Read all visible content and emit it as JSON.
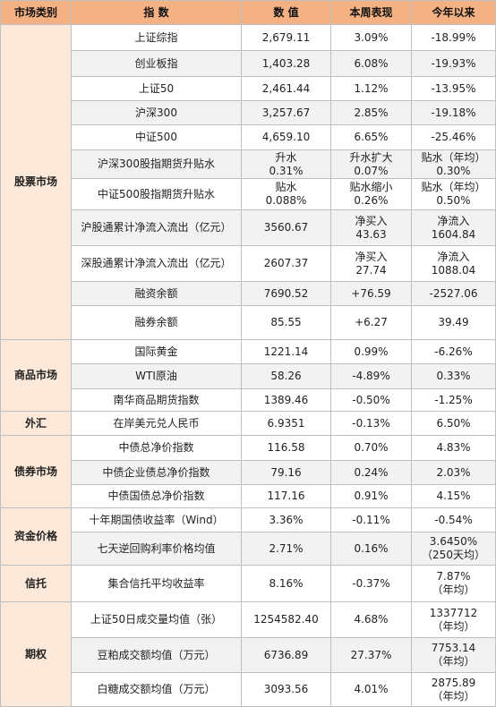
{
  "header": [
    "市场类别",
    "指 数",
    "数 值",
    "本周表现",
    "今年以来"
  ],
  "groups": [
    {
      "category": "股票市场",
      "rows": [
        [
          "上证综指",
          "2,679.11",
          "3.09%",
          "-18.99%"
        ],
        [
          "创业板指",
          "1,403.28",
          "6.08%",
          "-19.93%"
        ],
        [
          "上证50",
          "2,461.44",
          "1.12%",
          "-13.95%"
        ],
        [
          "沪深300",
          "3,257.67",
          "2.85%",
          "-19.18%"
        ],
        [
          "中证500",
          "4,659.10",
          "6.65%",
          "-25.46%"
        ],
        [
          "沪深300股指期货升贴水",
          "升水\n0.31%",
          "升水扩大\n0.07%",
          "贴水（年均）\n0.30%"
        ],
        [
          "中证500股指期货升贴水",
          "贴水\n0.088%",
          "贴水缩小\n0.26%",
          "贴水（年均）\n0.50%"
        ],
        [
          "沪股通累计净流入流出（亿元）",
          "3560.67",
          "净买入\n43.63",
          "净流入\n1604.84"
        ],
        [
          "深股通累计净流入流出（亿元）",
          "2607.37",
          "净买入\n27.74",
          "净流入\n1088.04"
        ],
        [
          "融资余额",
          "7690.52",
          "+76.59",
          "-2527.06"
        ],
        [
          "融券余额",
          "85.55",
          "+6.27",
          "39.49"
        ]
      ]
    },
    {
      "category": "商品市场",
      "rows": [
        [
          "国际黄金",
          "1221.14",
          "0.99%",
          "-6.26%"
        ],
        [
          "WTI原油",
          "58.26",
          "-4.89%",
          "0.33%"
        ],
        [
          "南华商品期货指数",
          "1389.46",
          "-0.50%",
          "-1.25%"
        ]
      ]
    },
    {
      "category": "外汇",
      "rows": [
        [
          "在岸美元兑人民币",
          "6.9351",
          "-0.13%",
          "6.50%"
        ]
      ]
    },
    {
      "category": "债券市场",
      "rows": [
        [
          "中债总净价指数",
          "116.58",
          "0.70%",
          "4.83%"
        ],
        [
          "中债企业债总净价指数",
          "79.16",
          "0.24%",
          "2.03%"
        ],
        [
          "中债国债总净价指数",
          "117.16",
          "0.91%",
          "4.15%"
        ]
      ]
    },
    {
      "category": "资金价格",
      "rows": [
        [
          "十年期国债收益率（Wind）",
          "3.36%",
          "-0.11%",
          "-0.54%"
        ],
        [
          "七天逆回购利率价格均值",
          "2.71%",
          "0.16%",
          "3.6450%\n（250天均）"
        ]
      ]
    },
    {
      "category": "信托",
      "rows": [
        [
          "集合信托平均收益率",
          "8.16%",
          "-0.37%",
          "7.87%\n（年均）"
        ]
      ]
    },
    {
      "category": "期权",
      "rows": [
        [
          "上证50日成交量均值（张）",
          "1254582.40",
          "4.68%",
          "1337712\n（年均）"
        ],
        [
          "豆粕成交额均值（万元）",
          "6736.89",
          "27.37%",
          "7753.14\n（年均）"
        ],
        [
          "白糖成交额均值（万元）",
          "3093.56",
          "4.01%",
          "2875.89\n（年均）"
        ]
      ]
    }
  ]
}
